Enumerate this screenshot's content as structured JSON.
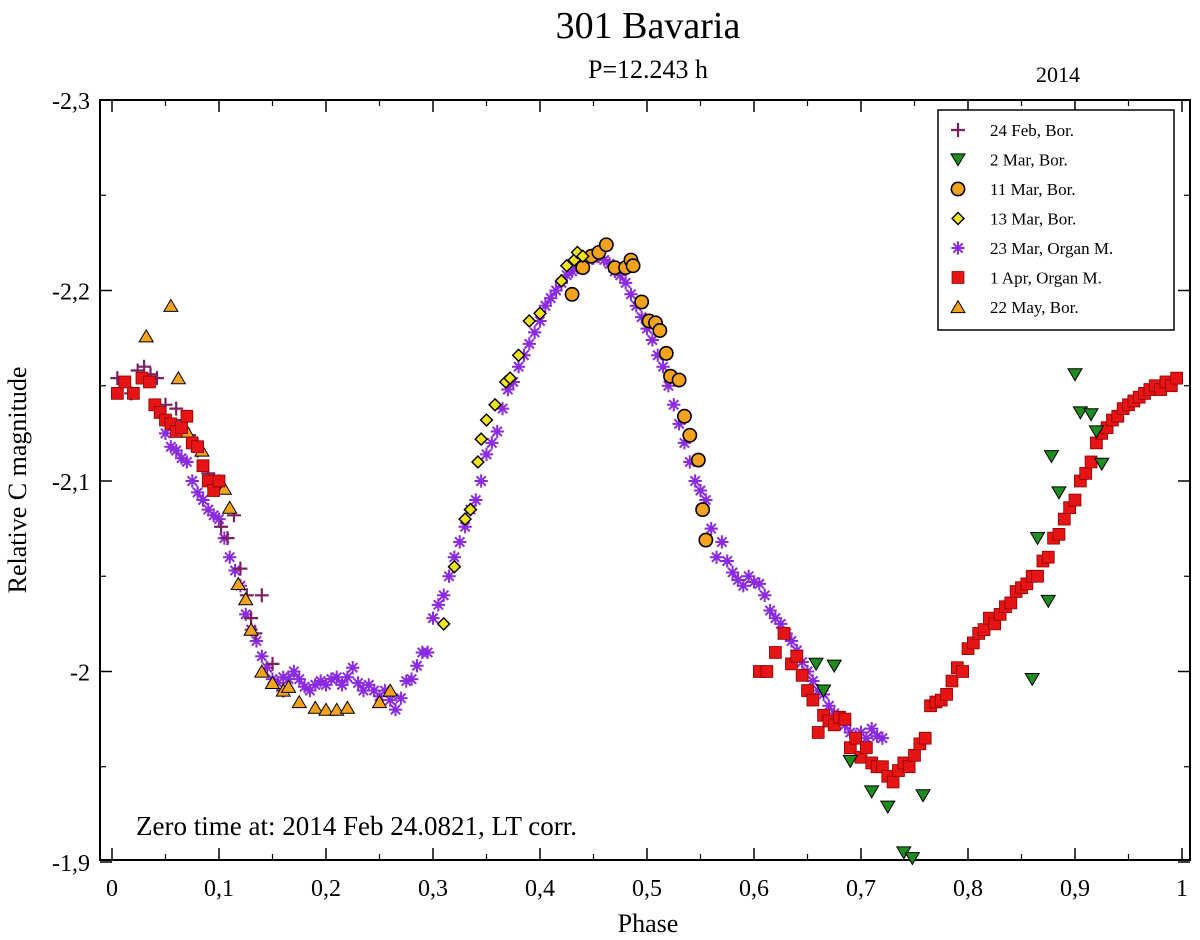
{
  "chart_data": {
    "type": "scatter",
    "title": "301 Bavaria",
    "subtitle": "P=12.243 h",
    "year_label": "2014",
    "xlabel": "Phase",
    "ylabel": "Relative C magnitude",
    "xlim": [
      0,
      1
    ],
    "ylim": [
      -2.3,
      -1.9
    ],
    "y_inverted": true,
    "x_ticks": [
      0,
      0.1,
      0.2,
      0.3,
      0.4,
      0.5,
      0.6,
      0.7,
      0.8,
      0.9,
      1
    ],
    "x_tick_labels": [
      "0",
      "0,1",
      "0,2",
      "0,3",
      "0,4",
      "0,5",
      "0,6",
      "0,7",
      "0,8",
      "0,9",
      "1"
    ],
    "y_ticks": [
      -2.3,
      -2.2,
      -2.1,
      -2.0,
      -1.9
    ],
    "y_tick_labels": [
      "-2,3",
      "-2,2",
      "-2,1",
      "-2",
      "-1,9"
    ],
    "annotation": "Zero time at: 2014 Feb 24.0821, LT corr.",
    "legend_position": "top-right",
    "series": [
      {
        "name": "24 Feb, Bor.",
        "marker": "plus",
        "color": "#7b1f5e",
        "x": [
          0.005,
          0.018,
          0.024,
          0.03,
          0.036,
          0.042,
          0.05,
          0.06,
          0.066,
          0.072,
          0.08,
          0.09,
          0.096,
          0.102,
          0.108,
          0.114,
          0.12,
          0.126,
          0.13,
          0.134,
          0.14,
          0.15,
          0.16
        ],
        "y": [
          -2.154,
          -2.146,
          -2.158,
          -2.16,
          -2.156,
          -2.154,
          -2.14,
          -2.138,
          -2.132,
          -2.124,
          -2.116,
          -2.104,
          -2.096,
          -2.076,
          -2.07,
          -2.082,
          -2.054,
          -2.04,
          -2.028,
          -2.02,
          -2.04,
          -2.004,
          -1.99
        ]
      },
      {
        "name": "2 Mar, Bor.",
        "marker": "triangle-down",
        "color": "#1e8c1e",
        "x": [
          0.658,
          0.665,
          0.675,
          0.69,
          0.71,
          0.725,
          0.74,
          0.748,
          0.758,
          0.86,
          0.865,
          0.875,
          0.878,
          0.885,
          0.9,
          0.905,
          0.915,
          0.92,
          0.925
        ],
        "y": [
          -2.004,
          -1.99,
          -2.003,
          -1.953,
          -1.937,
          -1.929,
          -1.905,
          -1.902,
          -1.935,
          -1.996,
          -2.07,
          -2.037,
          -2.113,
          -2.094,
          -2.156,
          -2.136,
          -2.135,
          -2.126,
          -2.109
        ],
        "y_extra": []
      },
      {
        "name": "11 Mar, Bor.",
        "marker": "circle",
        "color": "#f4a31c",
        "x": [
          0.43,
          0.44,
          0.448,
          0.455,
          0.462,
          0.47,
          0.48,
          0.485,
          0.487,
          0.495,
          0.502,
          0.508,
          0.512,
          0.518,
          0.522,
          0.53,
          0.535,
          0.54,
          0.548,
          0.552,
          0.555
        ],
        "y": [
          -2.198,
          -2.212,
          -2.218,
          -2.22,
          -2.224,
          -2.212,
          -2.212,
          -2.216,
          -2.213,
          -2.194,
          -2.184,
          -2.183,
          -2.179,
          -2.167,
          -2.155,
          -2.153,
          -2.134,
          -2.124,
          -2.111,
          -2.085,
          -2.069
        ]
      },
      {
        "name": "13 Mar, Bor.",
        "marker": "diamond",
        "color": "#f2e21c",
        "x": [
          0.31,
          0.32,
          0.33,
          0.335,
          0.342,
          0.345,
          0.35,
          0.358,
          0.368,
          0.372,
          0.38,
          0.39,
          0.4,
          0.42,
          0.425,
          0.432,
          0.435,
          0.44
        ],
        "y": [
          -2.025,
          -2.055,
          -2.08,
          -2.085,
          -2.11,
          -2.122,
          -2.132,
          -2.14,
          -2.152,
          -2.154,
          -2.166,
          -2.184,
          -2.188,
          -2.205,
          -2.213,
          -2.216,
          -2.22,
          -2.218
        ]
      },
      {
        "name": "23 Mar, Organ M.",
        "marker": "asterisk",
        "color": "#8a2be2",
        "x": [
          0.05,
          0.055,
          0.06,
          0.065,
          0.07,
          0.075,
          0.08,
          0.085,
          0.09,
          0.095,
          0.1,
          0.105,
          0.11,
          0.115,
          0.12,
          0.125,
          0.13,
          0.135,
          0.14,
          0.145,
          0.15,
          0.155,
          0.16,
          0.165,
          0.17,
          0.175,
          0.18,
          0.185,
          0.19,
          0.195,
          0.2,
          0.205,
          0.21,
          0.215,
          0.22,
          0.225,
          0.23,
          0.235,
          0.24,
          0.245,
          0.25,
          0.255,
          0.26,
          0.265,
          0.27,
          0.275,
          0.28,
          0.285,
          0.29,
          0.295,
          0.3,
          0.305,
          0.31,
          0.315,
          0.32,
          0.325,
          0.33,
          0.335,
          0.34,
          0.345,
          0.35,
          0.355,
          0.36,
          0.365,
          0.37,
          0.375,
          0.38,
          0.385,
          0.39,
          0.395,
          0.4,
          0.405,
          0.41,
          0.415,
          0.42,
          0.425,
          0.43,
          0.435,
          0.44,
          0.445,
          0.45,
          0.455,
          0.46,
          0.465,
          0.47,
          0.475,
          0.48,
          0.485,
          0.49,
          0.495,
          0.5,
          0.505,
          0.51,
          0.515,
          0.52,
          0.525,
          0.53,
          0.535,
          0.54,
          0.545,
          0.55,
          0.555,
          0.56,
          0.565,
          0.57,
          0.575,
          0.58,
          0.585,
          0.59,
          0.595,
          0.6,
          0.605,
          0.61,
          0.615,
          0.62,
          0.625,
          0.63,
          0.635,
          0.64,
          0.645,
          0.65,
          0.655,
          0.66,
          0.665,
          0.67,
          0.675,
          0.68,
          0.685,
          0.69,
          0.695,
          0.7,
          0.705,
          0.71,
          0.715,
          0.72
        ],
        "y": [
          -2.125,
          -2.118,
          -2.116,
          -2.112,
          -2.11,
          -2.1,
          -2.094,
          -2.09,
          -2.085,
          -2.082,
          -2.08,
          -2.07,
          -2.06,
          -2.053,
          -2.045,
          -2.03,
          -2.022,
          -2.016,
          -2.008,
          -2.002,
          -1.996,
          -1.994,
          -1.997,
          -1.996,
          -2.0,
          -1.996,
          -1.992,
          -1.99,
          -1.993,
          -1.995,
          -1.993,
          -1.996,
          -1.997,
          -1.993,
          -1.997,
          -2.002,
          -1.994,
          -1.99,
          -1.993,
          -1.99,
          -1.987,
          -1.99,
          -1.985,
          -1.98,
          -1.986,
          -1.995,
          -1.996,
          -2.003,
          -2.01,
          -2.01,
          -2.028,
          -2.035,
          -2.04,
          -2.05,
          -2.06,
          -2.068,
          -2.076,
          -2.085,
          -2.09,
          -2.1,
          -2.114,
          -2.12,
          -2.126,
          -2.138,
          -2.148,
          -2.152,
          -2.16,
          -2.166,
          -2.172,
          -2.178,
          -2.184,
          -2.192,
          -2.196,
          -2.2,
          -2.204,
          -2.208,
          -2.21,
          -2.212,
          -2.214,
          -2.216,
          -2.217,
          -2.218,
          -2.216,
          -2.214,
          -2.21,
          -2.208,
          -2.204,
          -2.198,
          -2.192,
          -2.186,
          -2.18,
          -2.174,
          -2.166,
          -2.16,
          -2.15,
          -2.14,
          -2.13,
          -2.12,
          -2.11,
          -2.1,
          -2.095,
          -2.09,
          -2.075,
          -2.06,
          -2.068,
          -2.058,
          -2.052,
          -2.048,
          -2.045,
          -2.05,
          -2.047,
          -2.046,
          -2.04,
          -2.032,
          -2.028,
          -2.025,
          -2.02,
          -2.016,
          -2.011,
          -2.005,
          -2.0,
          -1.995,
          -1.99,
          -1.988,
          -1.982,
          -1.978,
          -1.974,
          -1.972,
          -1.968,
          -1.966,
          -1.968,
          -1.965,
          -1.97,
          -1.966,
          -1.965
        ]
      },
      {
        "name": "1 Apr, Organ M.",
        "marker": "square",
        "color": "#e61414",
        "x": [
          0.005,
          0.012,
          0.02,
          0.028,
          0.035,
          0.04,
          0.045,
          0.05,
          0.055,
          0.06,
          0.065,
          0.07,
          0.075,
          0.08,
          0.085,
          0.09,
          0.095,
          0.1,
          0.605,
          0.612,
          0.62,
          0.628,
          0.635,
          0.64,
          0.645,
          0.65,
          0.655,
          0.66,
          0.665,
          0.67,
          0.675,
          0.68,
          0.685,
          0.69,
          0.695,
          0.7,
          0.705,
          0.71,
          0.715,
          0.72,
          0.725,
          0.73,
          0.735,
          0.74,
          0.745,
          0.75,
          0.755,
          0.76,
          0.765,
          0.77,
          0.775,
          0.78,
          0.785,
          0.79,
          0.795,
          0.8,
          0.805,
          0.81,
          0.815,
          0.82,
          0.825,
          0.83,
          0.835,
          0.84,
          0.845,
          0.85,
          0.855,
          0.86,
          0.865,
          0.87,
          0.875,
          0.88,
          0.885,
          0.89,
          0.895,
          0.9,
          0.905,
          0.91,
          0.915,
          0.92,
          0.925,
          0.93,
          0.935,
          0.94,
          0.945,
          0.95,
          0.955,
          0.96,
          0.965,
          0.97,
          0.975,
          0.98,
          0.985,
          0.99,
          0.995
        ],
        "y": [
          -2.146,
          -2.152,
          -2.146,
          -2.154,
          -2.152,
          -2.14,
          -2.136,
          -2.132,
          -2.13,
          -2.126,
          -2.128,
          -2.134,
          -2.12,
          -2.118,
          -2.108,
          -2.1,
          -2.095,
          -2.1,
          -2.0,
          -2.0,
          -2.01,
          -2.02,
          -2.004,
          -2.008,
          -1.998,
          -1.99,
          -1.985,
          -1.968,
          -1.977,
          -1.974,
          -1.972,
          -1.976,
          -1.975,
          -1.96,
          -1.965,
          -1.955,
          -1.96,
          -1.952,
          -1.95,
          -1.95,
          -1.945,
          -1.942,
          -1.948,
          -1.952,
          -1.95,
          -1.956,
          -1.962,
          -1.965,
          -1.982,
          -1.984,
          -1.985,
          -1.988,
          -1.995,
          -2.002,
          -2.0,
          -2.012,
          -2.015,
          -2.02,
          -2.022,
          -2.028,
          -2.025,
          -2.03,
          -2.034,
          -2.036,
          -2.042,
          -2.044,
          -2.046,
          -2.05,
          -2.05,
          -2.058,
          -2.06,
          -2.07,
          -2.072,
          -2.08,
          -2.086,
          -2.09,
          -2.1,
          -2.104,
          -2.11,
          -2.12,
          -2.125,
          -2.128,
          -2.132,
          -2.134,
          -2.138,
          -2.14,
          -2.142,
          -2.144,
          -2.146,
          -2.148,
          -2.15,
          -2.148,
          -2.152,
          -2.15,
          -2.154
        ]
      },
      {
        "name": "22 May, Bor.",
        "marker": "triangle-up",
        "color": "#f4a31c",
        "x": [
          0.032,
          0.055,
          0.062,
          0.07,
          0.084,
          0.1,
          0.105,
          0.11,
          0.118,
          0.125,
          0.13,
          0.14,
          0.15,
          0.16,
          0.165,
          0.175,
          0.19,
          0.2,
          0.21,
          0.22,
          0.25,
          0.26
        ],
        "y": [
          -2.176,
          -2.192,
          -2.154,
          -2.126,
          -2.116,
          -2.1,
          -2.096,
          -2.086,
          -2.046,
          -2.038,
          -2.022,
          -2.0,
          -1.994,
          -1.99,
          -1.992,
          -1.984,
          -1.981,
          -1.98,
          -1.98,
          -1.981,
          -1.984,
          -1.99
        ]
      }
    ]
  }
}
